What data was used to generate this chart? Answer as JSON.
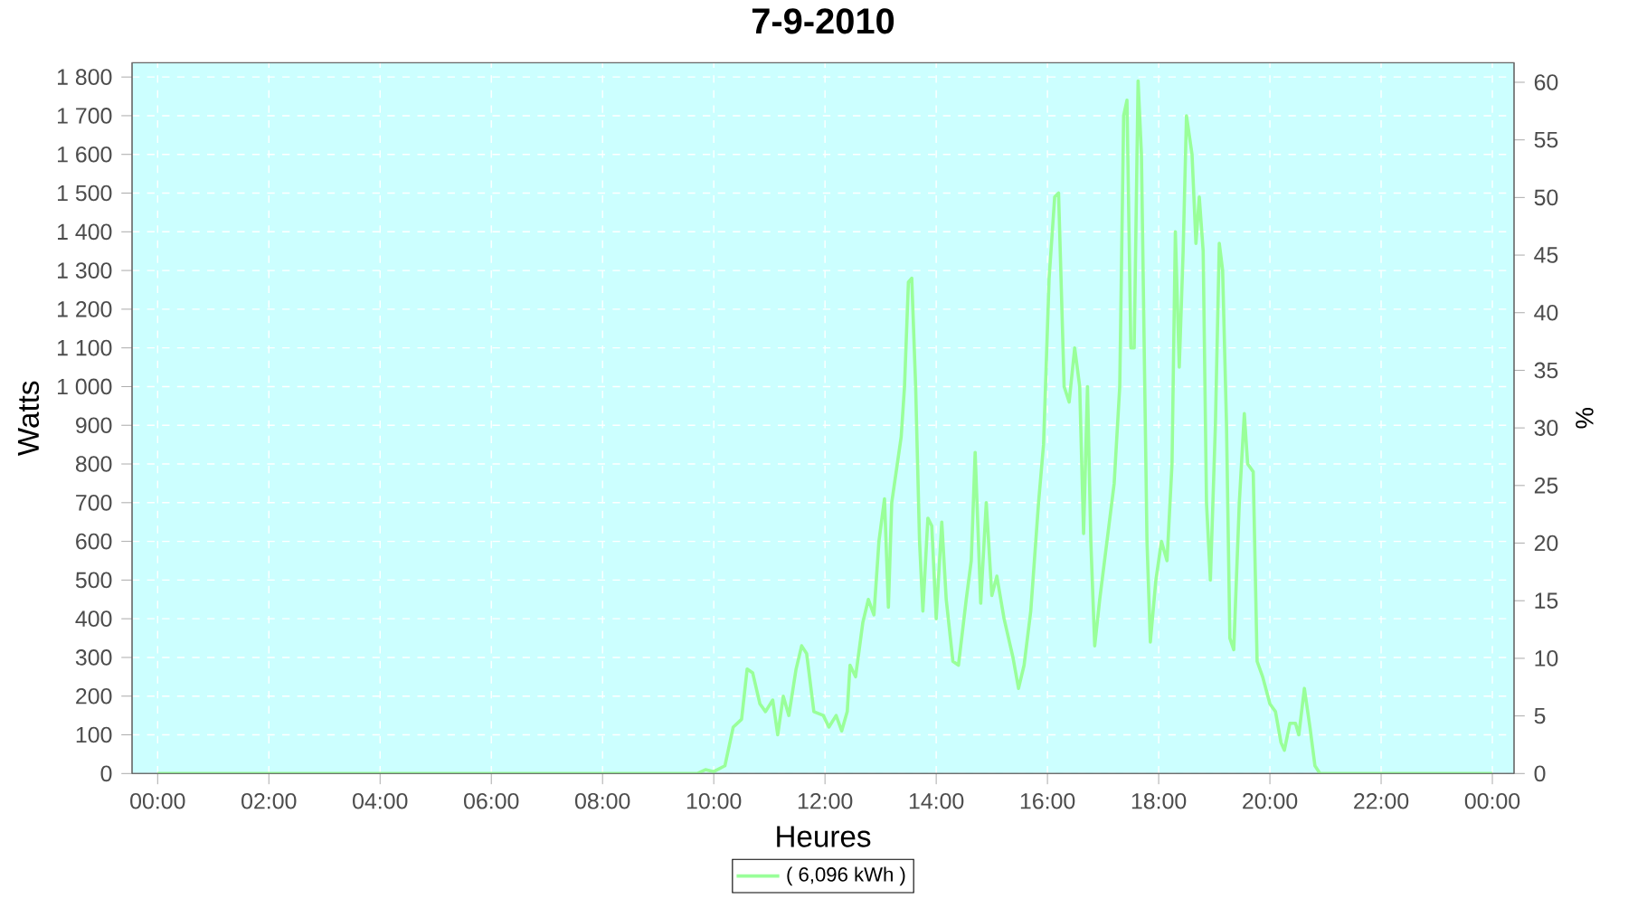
{
  "chart_data": {
    "type": "line",
    "title": "7-9-2010",
    "xlabel": "Heures",
    "ylabel": "Watts",
    "y2label": "%",
    "x": [
      0,
      9.7,
      9.85,
      10.0,
      10.2,
      10.35,
      10.5,
      10.6,
      10.7,
      10.83,
      10.93,
      11.06,
      11.15,
      11.25,
      11.35,
      11.48,
      11.58,
      11.67,
      11.8,
      11.97,
      12.07,
      12.2,
      12.3,
      12.4,
      12.45,
      12.55,
      12.68,
      12.78,
      12.88,
      12.97,
      13.07,
      13.14,
      13.2,
      13.3,
      13.37,
      13.43,
      13.5,
      13.56,
      13.63,
      13.7,
      13.76,
      13.85,
      13.92,
      14.0,
      14.1,
      14.18,
      14.3,
      14.4,
      14.54,
      14.63,
      14.7,
      14.8,
      14.9,
      15.0,
      15.09,
      15.22,
      15.38,
      15.48,
      15.58,
      15.7,
      15.84,
      15.93,
      16.03,
      16.13,
      16.2,
      16.3,
      16.39,
      16.49,
      16.58,
      16.65,
      16.72,
      16.78,
      16.85,
      16.94,
      17.07,
      17.2,
      17.3,
      17.37,
      17.43,
      17.5,
      17.56,
      17.63,
      17.69,
      17.79,
      17.85,
      17.95,
      18.05,
      18.15,
      18.24,
      18.3,
      18.37,
      18.44,
      18.5,
      18.6,
      18.67,
      18.73,
      18.8,
      18.86,
      18.93,
      19.02,
      19.09,
      19.15,
      19.22,
      19.28,
      19.35,
      19.45,
      19.54,
      19.6,
      19.7,
      19.77,
      19.87,
      20.0,
      20.1,
      20.2,
      20.26,
      20.36,
      20.46,
      20.52,
      20.62,
      20.72,
      20.81,
      20.9,
      21.07,
      24
    ],
    "series": [
      {
        "name": "( 6,096 kWh )",
        "color": "#99ff99",
        "values": [
          0,
          0,
          10,
          5,
          20,
          120,
          140,
          270,
          260,
          180,
          160,
          190,
          100,
          200,
          150,
          270,
          330,
          310,
          160,
          150,
          120,
          150,
          110,
          160,
          280,
          250,
          390,
          450,
          410,
          600,
          710,
          430,
          700,
          800,
          870,
          1000,
          1270,
          1280,
          1000,
          600,
          420,
          660,
          640,
          400,
          650,
          450,
          290,
          280,
          450,
          550,
          830,
          440,
          700,
          460,
          510,
          400,
          300,
          220,
          280,
          420,
          700,
          850,
          1280,
          1490,
          1500,
          1000,
          960,
          1100,
          1000,
          620,
          1000,
          600,
          330,
          450,
          600,
          750,
          1000,
          1700,
          1740,
          1100,
          1100,
          1790,
          1600,
          600,
          340,
          500,
          600,
          550,
          800,
          1400,
          1050,
          1350,
          1700,
          1600,
          1370,
          1490,
          1350,
          700,
          500,
          900,
          1370,
          1300,
          900,
          350,
          320,
          700,
          930,
          800,
          780,
          290,
          250,
          180,
          160,
          80,
          60,
          130,
          130,
          100,
          220,
          120,
          20,
          0,
          0,
          0
        ]
      }
    ],
    "xlim": [
      -0.46,
      24.39
    ],
    "ylim": [
      0,
      1837
    ],
    "y2lim": [
      0,
      61.7
    ],
    "xticks": [
      {
        "value": 0,
        "label": "00:00"
      },
      {
        "value": 2,
        "label": "02:00"
      },
      {
        "value": 4,
        "label": "04:00"
      },
      {
        "value": 6,
        "label": "06:00"
      },
      {
        "value": 8,
        "label": "08:00"
      },
      {
        "value": 10,
        "label": "10:00"
      },
      {
        "value": 12,
        "label": "12:00"
      },
      {
        "value": 14,
        "label": "14:00"
      },
      {
        "value": 16,
        "label": "16:00"
      },
      {
        "value": 18,
        "label": "18:00"
      },
      {
        "value": 20,
        "label": "20:00"
      },
      {
        "value": 22,
        "label": "22:00"
      },
      {
        "value": 24,
        "label": "00:00"
      }
    ],
    "yticks": [
      0,
      100,
      200,
      300,
      400,
      500,
      600,
      700,
      800,
      900,
      {
        "value": 1000,
        "label": "1 000"
      },
      {
        "value": 1100,
        "label": "1 100"
      },
      {
        "value": 1200,
        "label": "1 200"
      },
      {
        "value": 1300,
        "label": "1 300"
      },
      {
        "value": 1400,
        "label": "1 400"
      },
      {
        "value": 1500,
        "label": "1 500"
      },
      {
        "value": 1600,
        "label": "1 600"
      },
      {
        "value": 1700,
        "label": "1 700"
      },
      {
        "value": 1800,
        "label": "1 800"
      }
    ],
    "y2ticks": [
      0,
      5,
      10,
      15,
      20,
      25,
      30,
      35,
      40,
      45,
      50,
      55,
      60
    ],
    "grid": true,
    "legend": "bottom",
    "marker": "none",
    "line_style": "solid"
  }
}
